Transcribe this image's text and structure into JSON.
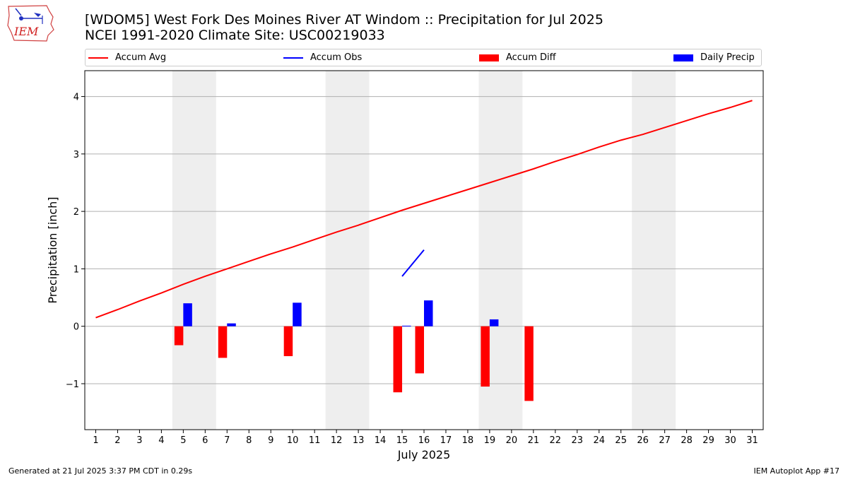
{
  "header": {
    "logo_text": "IEM",
    "title": "[WDOM5] West Fork Des Moines River  AT Windom :: Precipitation for Jul 2025",
    "subtitle": "NCEI 1991-2020 Climate Site: USC00219033"
  },
  "legend": {
    "items": [
      {
        "label": "Accum Avg",
        "kind": "line",
        "color": "#ff0000"
      },
      {
        "label": "Accum Obs",
        "kind": "line",
        "color": "#0000ff"
      },
      {
        "label": "Accum Diff",
        "kind": "box",
        "color": "#ff0000"
      },
      {
        "label": "Daily Precip",
        "kind": "box",
        "color": "#0000ff"
      }
    ]
  },
  "footer": {
    "left": "Generated at 21 Jul 2025 3:37 PM CDT in 0.29s",
    "right": "IEM Autoplot App #17"
  },
  "chart_data": {
    "type": "bar",
    "xlabel": "July 2025",
    "ylabel": "Precipitation [inch]",
    "days": [
      1,
      2,
      3,
      4,
      5,
      6,
      7,
      8,
      9,
      10,
      11,
      12,
      13,
      14,
      15,
      16,
      17,
      18,
      19,
      20,
      21,
      22,
      23,
      24,
      25,
      26,
      27,
      28,
      29,
      30,
      31
    ],
    "xlim": [
      0.5,
      31.5
    ],
    "ylim": [
      -1.8,
      4.45
    ],
    "yticks": [
      -1,
      0,
      1,
      2,
      3,
      4
    ],
    "ytick_labels": [
      "−1",
      "0",
      "1",
      "2",
      "3",
      "4"
    ],
    "grid": "horizontal",
    "weekend_shading": [
      [
        4.5,
        6.5
      ],
      [
        11.5,
        13.5
      ],
      [
        18.5,
        20.5
      ],
      [
        25.5,
        27.5
      ]
    ],
    "series": [
      {
        "name": "Accum Avg",
        "kind": "line",
        "color": "#ff0000",
        "x": [
          1,
          2,
          3,
          4,
          5,
          6,
          7,
          8,
          9,
          10,
          11,
          12,
          13,
          14,
          15,
          16,
          17,
          18,
          19,
          20,
          21,
          22,
          23,
          24,
          25,
          26,
          27,
          28,
          29,
          30,
          31
        ],
        "values": [
          0.15,
          0.29,
          0.44,
          0.58,
          0.73,
          0.87,
          1.0,
          1.13,
          1.26,
          1.38,
          1.51,
          1.64,
          1.76,
          1.89,
          2.02,
          2.14,
          2.26,
          2.38,
          2.5,
          2.62,
          2.74,
          2.87,
          2.99,
          3.12,
          3.24,
          3.34,
          3.46,
          3.58,
          3.7,
          3.81,
          3.93
        ]
      },
      {
        "name": "Accum Obs",
        "kind": "line",
        "color": "#0000ff",
        "x": [
          15,
          16
        ],
        "values": [
          0.87,
          1.33
        ]
      },
      {
        "name": "Accum Diff",
        "kind": "bar",
        "color": "#ff0000",
        "x": [
          5,
          7,
          10,
          15,
          16,
          19,
          21
        ],
        "values": [
          -0.33,
          -0.55,
          -0.52,
          -1.15,
          -0.82,
          -1.05,
          -1.3
        ]
      },
      {
        "name": "Daily Precip",
        "kind": "bar",
        "color": "#0000ff",
        "x": [
          5,
          7,
          10,
          15,
          16,
          19
        ],
        "values": [
          0.4,
          0.05,
          0.41,
          0.01,
          0.45,
          0.12
        ]
      }
    ]
  }
}
